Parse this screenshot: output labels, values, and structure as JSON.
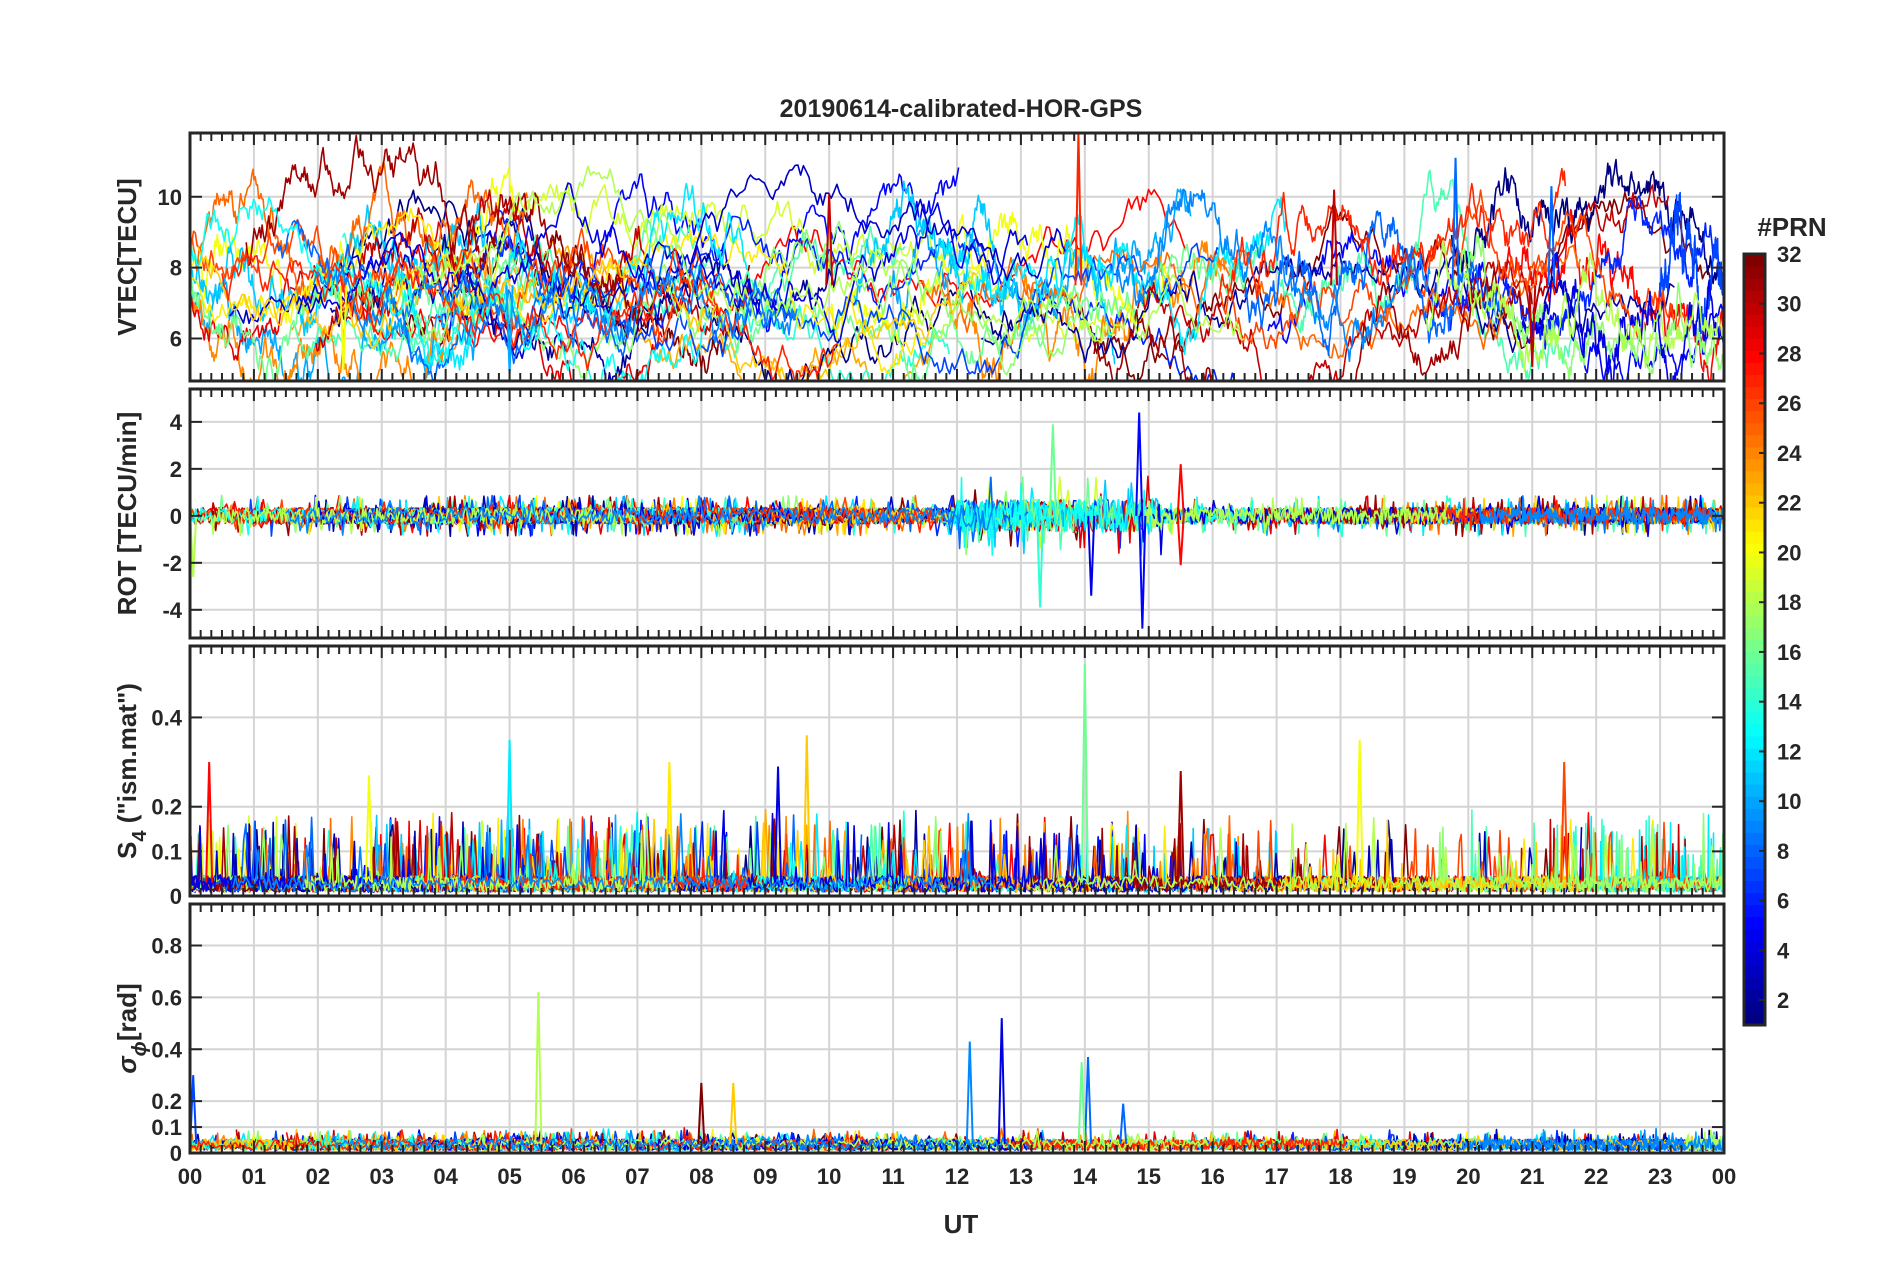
{
  "chart_data": {
    "type": "line",
    "title": "20190614-calibrated-HOR-GPS",
    "xlabel": "UT",
    "x_ticks": [
      "00",
      "01",
      "02",
      "03",
      "04",
      "05",
      "06",
      "07",
      "08",
      "09",
      "10",
      "11",
      "12",
      "13",
      "14",
      "15",
      "16",
      "17",
      "18",
      "19",
      "20",
      "21",
      "22",
      "23",
      "00"
    ],
    "xlim": [
      0,
      24
    ],
    "grid": true,
    "panels": [
      {
        "id": "vtec",
        "ylabel": "VTEC[TECU]",
        "ylim": [
          4.8,
          11.8
        ],
        "y_ticks": [
          6,
          8,
          10
        ],
        "y_tick_labels": [
          "6",
          "8",
          "10"
        ],
        "series_summary": {
          "baseline": 7.5,
          "spread": 1.1,
          "note": "diurnal VTEC traces per PRN, mostly 6-9 TECU, spike near 14 UT up to ~11.8"
        },
        "highlights": [
          {
            "prn": 27,
            "x": 13.9,
            "y": 11.8
          },
          {
            "prn": 8,
            "x": 19.8,
            "y": 11.1
          },
          {
            "prn": 8,
            "x": 21.3,
            "y": 10.3
          },
          {
            "prn": 30,
            "x": 10.0,
            "y": 10.1
          },
          {
            "prn": 30,
            "x": 17.9,
            "y": 10.2
          },
          {
            "prn": 10,
            "x": 5.0,
            "y": 5.0
          },
          {
            "prn": 20,
            "x": 2.4,
            "y": 5.1
          },
          {
            "prn": 30,
            "x": 21.0,
            "y": 5.2
          }
        ]
      },
      {
        "id": "rot",
        "ylabel": "ROT [TECU/min]",
        "ylim": [
          -5.2,
          5.4
        ],
        "y_ticks": [
          -4,
          -2,
          0,
          2,
          4
        ],
        "y_tick_labels": [
          "-4",
          "-2",
          "0",
          "2",
          "4"
        ],
        "series_summary": {
          "baseline": 0,
          "spread": 0.3,
          "note": "fluctuations around 0, strongest activity 12-15 UT"
        },
        "highlights": [
          {
            "prn": 5,
            "x": 14.85,
            "y": 4.4
          },
          {
            "prn": 5,
            "x": 14.9,
            "y": -4.8
          },
          {
            "prn": 16,
            "x": 13.5,
            "y": 3.9
          },
          {
            "prn": 14,
            "x": 13.3,
            "y": -3.9
          },
          {
            "prn": 4,
            "x": 14.1,
            "y": -3.4
          },
          {
            "prn": 28,
            "x": 15.5,
            "y": 2.2
          },
          {
            "prn": 28,
            "x": 15.5,
            "y": -2.1
          },
          {
            "prn": 18,
            "x": 0.05,
            "y": -2.6
          }
        ]
      },
      {
        "id": "s4",
        "ylabel": "S",
        "ylabel_sub": "4",
        "ylabel_suffix": " (\"ism.mat\")",
        "ylim": [
          0,
          0.56
        ],
        "y_ticks": [
          0,
          0.1,
          0.2,
          0.4
        ],
        "y_tick_labels": [
          "0",
          "0.1",
          "0.2",
          "0.4"
        ],
        "series_summary": {
          "baseline": 0.03,
          "spread": 0.05,
          "note": "amplitude scintillation index, bursts to 0.2-0.36"
        },
        "highlights": [
          {
            "prn": 16,
            "x": 14.0,
            "y": 0.52
          },
          {
            "prn": 22,
            "x": 9.65,
            "y": 0.36
          },
          {
            "prn": 12,
            "x": 5.0,
            "y": 0.35
          },
          {
            "prn": 20,
            "x": 18.3,
            "y": 0.35
          },
          {
            "prn": 28,
            "x": 0.3,
            "y": 0.3
          },
          {
            "prn": 21,
            "x": 7.5,
            "y": 0.3
          },
          {
            "prn": 4,
            "x": 9.2,
            "y": 0.29
          },
          {
            "prn": 26,
            "x": 21.5,
            "y": 0.3
          },
          {
            "prn": 20,
            "x": 2.8,
            "y": 0.27
          },
          {
            "prn": 31,
            "x": 15.5,
            "y": 0.28
          }
        ]
      },
      {
        "id": "sigma_phi",
        "ylabel": "σ",
        "ylabel_sub": "ϕ",
        "ylabel_suffix": "[rad]",
        "ylim": [
          0,
          0.96
        ],
        "y_ticks": [
          0,
          0.1,
          0.2,
          0.4,
          0.6,
          0.8
        ],
        "y_tick_labels": [
          "0",
          "0.1",
          "0.2",
          "0.4",
          "0.6",
          "0.8"
        ],
        "series_summary": {
          "baseline": 0.035,
          "spread": 0.015,
          "note": "phase scintillation index, mostly < 0.1 with isolated spikes"
        },
        "highlights": [
          {
            "prn": 18,
            "x": 5.45,
            "y": 0.62
          },
          {
            "prn": 4,
            "x": 12.7,
            "y": 0.52
          },
          {
            "prn": 9,
            "x": 12.2,
            "y": 0.43
          },
          {
            "prn": 8,
            "x": 14.05,
            "y": 0.37
          },
          {
            "prn": 16,
            "x": 13.95,
            "y": 0.35
          },
          {
            "prn": 7,
            "x": 0.05,
            "y": 0.3
          },
          {
            "prn": 32,
            "x": 8.0,
            "y": 0.27
          },
          {
            "prn": 22,
            "x": 8.5,
            "y": 0.27
          },
          {
            "prn": 8,
            "x": 14.6,
            "y": 0.19
          }
        ]
      }
    ],
    "colorbar": {
      "title": "#PRN",
      "min": 1,
      "max": 32,
      "ticks": [
        2,
        4,
        6,
        8,
        10,
        12,
        14,
        16,
        18,
        20,
        22,
        24,
        26,
        28,
        30,
        32
      ],
      "colormap": "jet"
    },
    "series": [
      {
        "prn": 1
      },
      {
        "prn": 2
      },
      {
        "prn": 3
      },
      {
        "prn": 4
      },
      {
        "prn": 5
      },
      {
        "prn": 6
      },
      {
        "prn": 7
      },
      {
        "prn": 8
      },
      {
        "prn": 9
      },
      {
        "prn": 10
      },
      {
        "prn": 11
      },
      {
        "prn": 12
      },
      {
        "prn": 13
      },
      {
        "prn": 14
      },
      {
        "prn": 15
      },
      {
        "prn": 16
      },
      {
        "prn": 17
      },
      {
        "prn": 18
      },
      {
        "prn": 19
      },
      {
        "prn": 20
      },
      {
        "prn": 21
      },
      {
        "prn": 22
      },
      {
        "prn": 23
      },
      {
        "prn": 24
      },
      {
        "prn": 25
      },
      {
        "prn": 26
      },
      {
        "prn": 27
      },
      {
        "prn": 28
      },
      {
        "prn": 29
      },
      {
        "prn": 30
      },
      {
        "prn": 31
      },
      {
        "prn": 32
      }
    ]
  }
}
